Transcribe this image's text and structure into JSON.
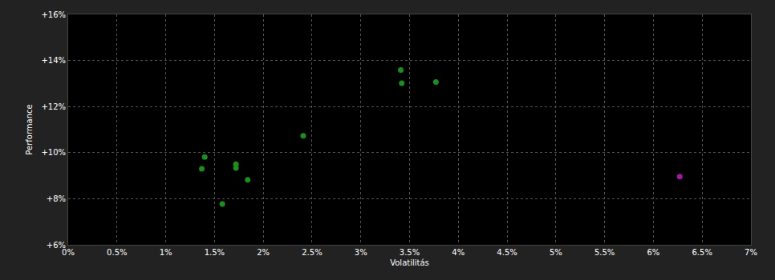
{
  "chart_data": {
    "type": "scatter",
    "x_label": "Volatilitás",
    "y_label": "Performance",
    "x": [
      1.4,
      1.37,
      1.72,
      1.72,
      1.84,
      1.58,
      2.41,
      3.41,
      3.42,
      3.77,
      6.27
    ],
    "values": [
      9.81,
      9.3,
      9.5,
      9.33,
      8.82,
      7.77,
      10.73,
      13.59,
      13.01,
      13.07,
      8.96
    ],
    "colors": [
      "#1f8c1f",
      "#1f8c1f",
      "#1f8c1f",
      "#1f8c1f",
      "#1f8c1f",
      "#1f8c1f",
      "#1f8c1f",
      "#1f8c1f",
      "#1f8c1f",
      "#1f8c1f",
      "#a01a9e"
    ],
    "marker": "circle",
    "xlim": [
      0,
      7
    ],
    "xticks": [
      {
        "value": 0,
        "label": "0%"
      },
      {
        "value": 0.5,
        "label": "0.5%"
      },
      {
        "value": 1,
        "label": "1%"
      },
      {
        "value": 1.5,
        "label": "1.5%"
      },
      {
        "value": 2,
        "label": "2%"
      },
      {
        "value": 2.5,
        "label": "2.5%"
      },
      {
        "value": 3,
        "label": "3%"
      },
      {
        "value": 3.5,
        "label": "3.5%"
      },
      {
        "value": 4,
        "label": "4%"
      },
      {
        "value": 4.5,
        "label": "4.5%"
      },
      {
        "value": 5,
        "label": "5%"
      },
      {
        "value": 5.5,
        "label": "5.5%"
      },
      {
        "value": 6,
        "label": "6%"
      },
      {
        "value": 6.5,
        "label": "6.5%"
      },
      {
        "value": 7,
        "label": "7%"
      }
    ],
    "ylim": [
      6,
      16
    ],
    "yticks": [
      {
        "value": 6,
        "label": "+6%"
      },
      {
        "value": 8,
        "label": "+8%"
      },
      {
        "value": 10,
        "label": "+10%"
      },
      {
        "value": 12,
        "label": "+12%"
      },
      {
        "value": 14,
        "label": "+14%"
      },
      {
        "value": 16,
        "label": "+16%"
      }
    ],
    "grid": true
  }
}
